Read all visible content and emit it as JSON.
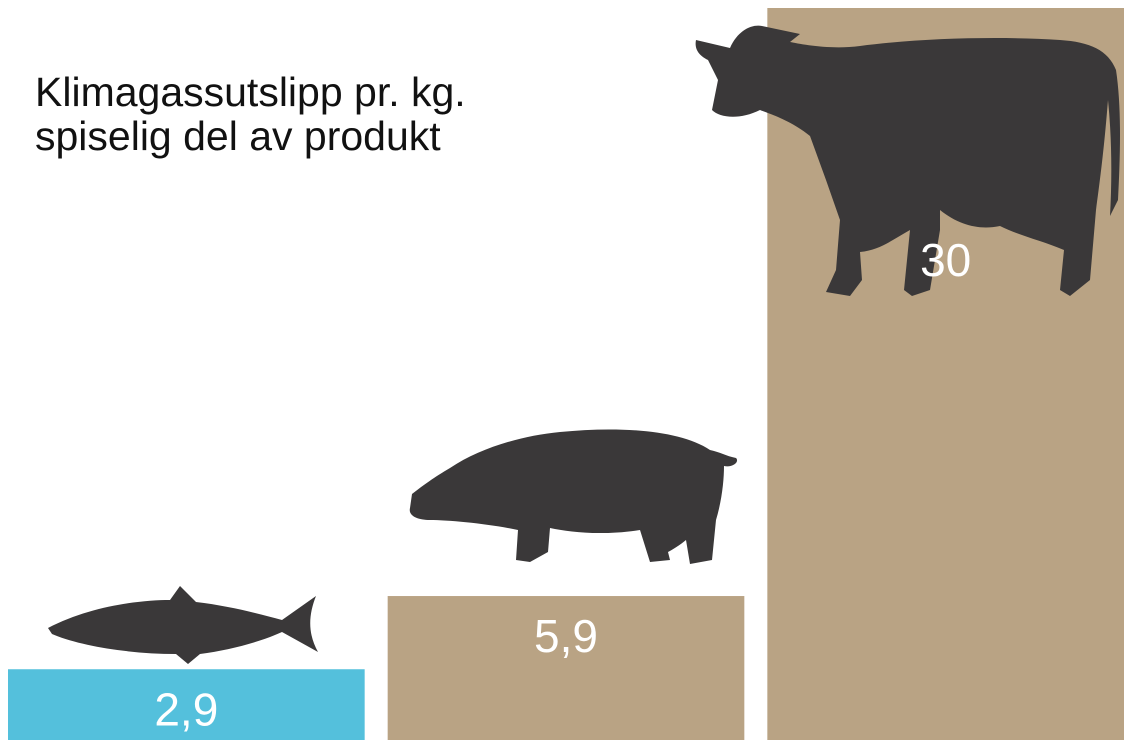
{
  "chart_data": {
    "type": "bar",
    "title": "Klimagassutslipp pr. kg. spiselig del av produkt",
    "categories": [
      null,
      null,
      null
    ],
    "values": [
      2.9,
      5.9,
      30
    ],
    "value_labels": [
      "2,9",
      "5,9",
      "30"
    ],
    "colors": [
      "#54c0dc",
      "#b9a384",
      "#b9a384"
    ]
  }
}
